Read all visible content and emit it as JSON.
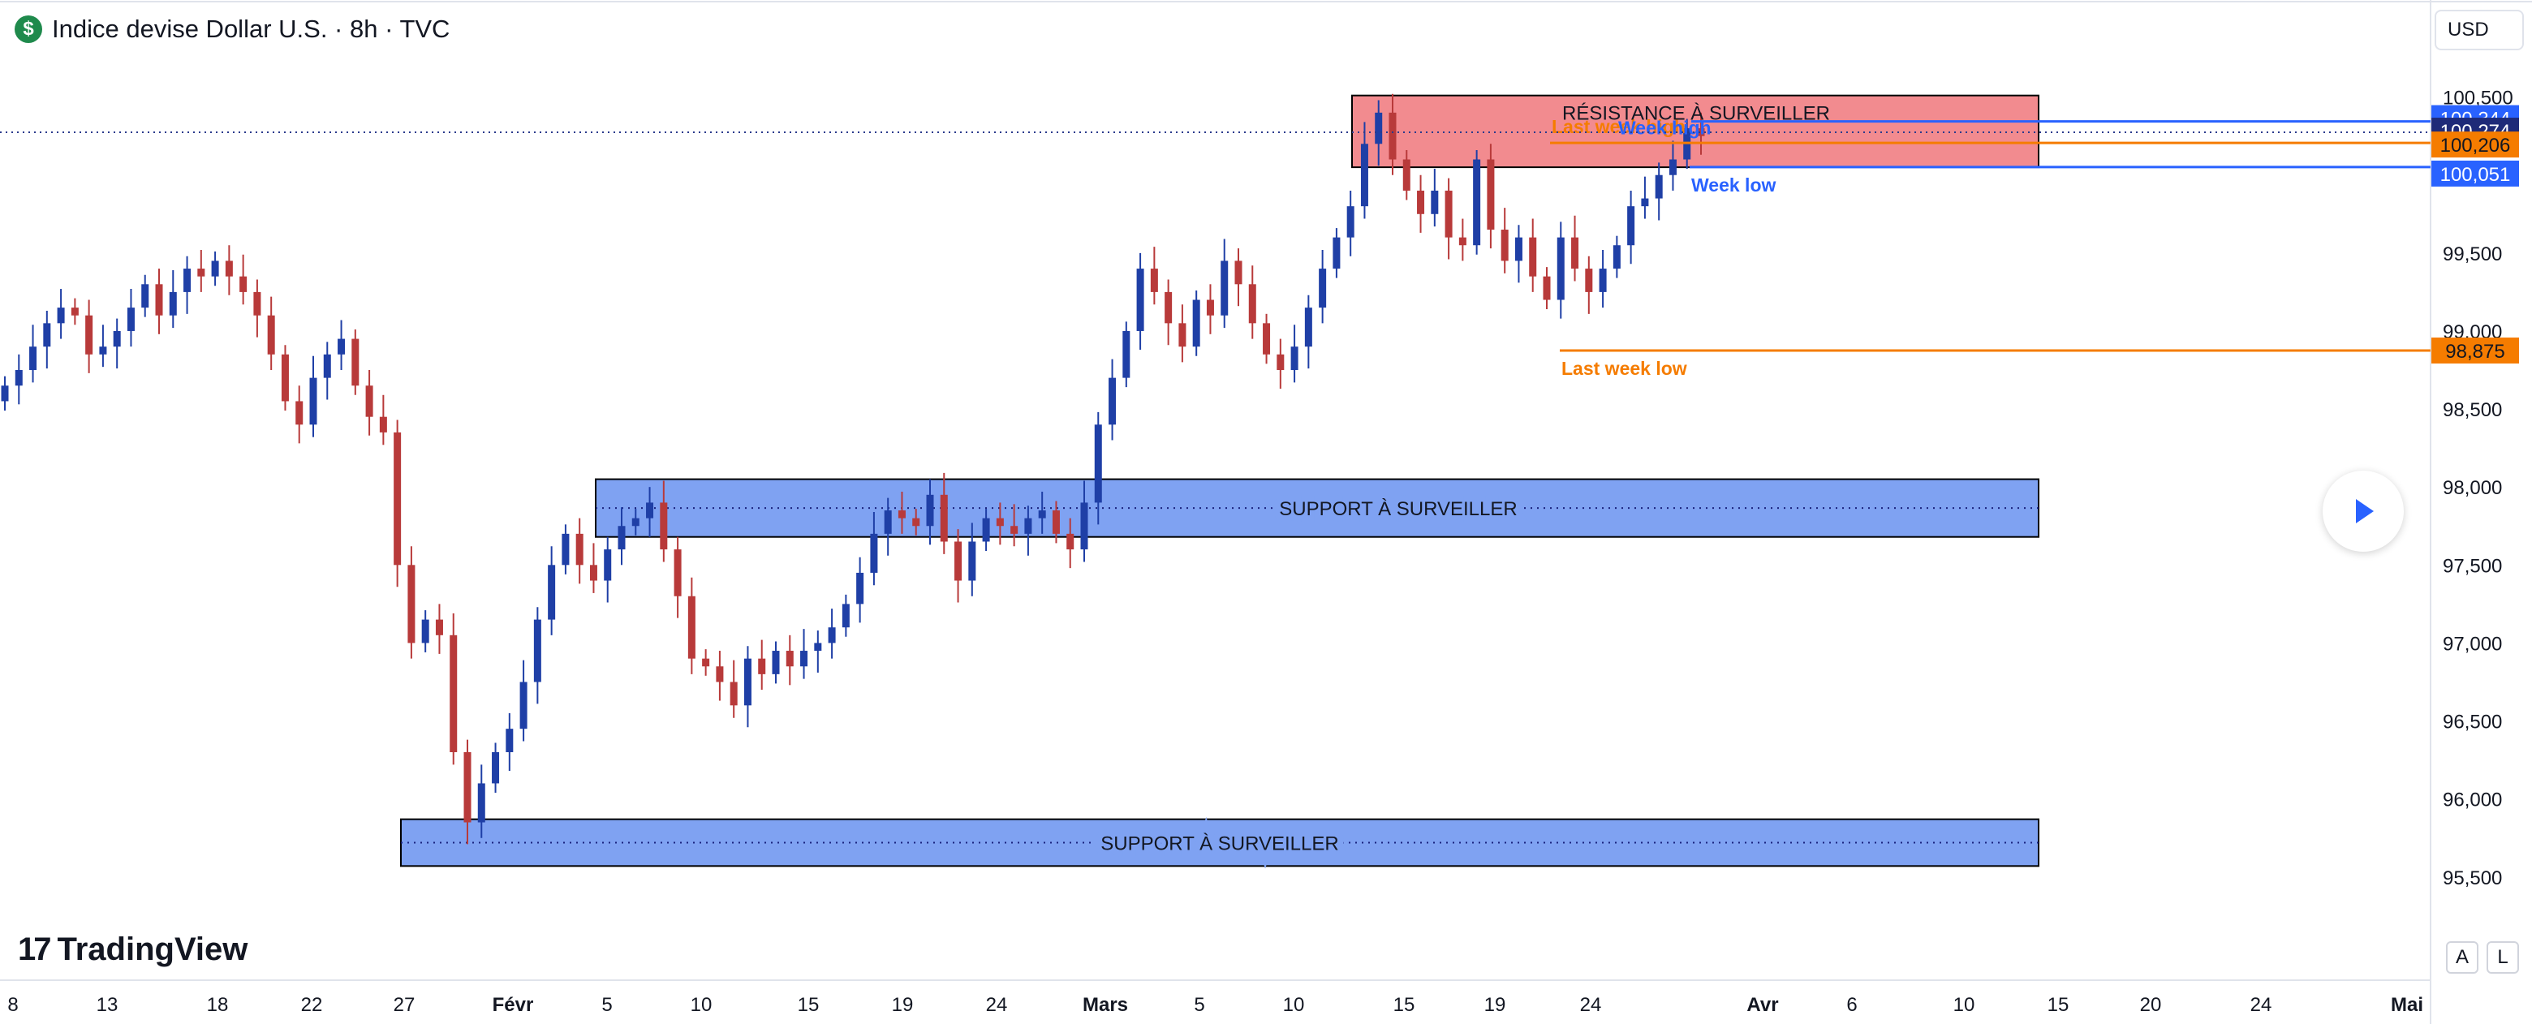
{
  "header": {
    "symbol_logo": "$",
    "title": "Indice devise Dollar U.S. · 8h · TVC",
    "currency": "USD"
  },
  "branding": {
    "name": "TradingView"
  },
  "buttons": {
    "auto": "A",
    "log": "L"
  },
  "icons": {
    "play": "play-icon",
    "logo": "tradingview-logo-icon"
  },
  "colors": {
    "up": "#1f3fa6",
    "down": "#b83a3a",
    "resistance": "#f28b8f",
    "support": "#7fa2f2",
    "last_week": "#f57c00",
    "week": "#2962ff"
  },
  "chart_data": {
    "type": "candlestick",
    "title": "Indice devise Dollar U.S. · 8h · TVC",
    "y_axis": {
      "range": [
        95.4,
        100.55
      ],
      "ticks": [
        "95,500",
        "96,000",
        "96,500",
        "97,000",
        "97,500",
        "98,000",
        "98,500",
        "99,000",
        "99,500",
        "100,500"
      ]
    },
    "x_axis": {
      "ticks": [
        "8",
        "13",
        "18",
        "22",
        "27",
        "Févr",
        "5",
        "10",
        "15",
        "19",
        "24",
        "Mars",
        "5",
        "10",
        "15",
        "19",
        "24",
        "Avr",
        "6",
        "10",
        "15",
        "20",
        "24",
        "Mai"
      ]
    },
    "closes": [
      98.65,
      98.75,
      98.9,
      99.05,
      99.15,
      99.1,
      98.85,
      98.9,
      99.0,
      99.15,
      99.3,
      99.1,
      99.25,
      99.4,
      99.35,
      99.45,
      99.35,
      99.25,
      99.1,
      98.85,
      98.55,
      98.4,
      98.7,
      98.85,
      98.95,
      98.65,
      98.45,
      98.35,
      97.5,
      97.0,
      97.15,
      97.05,
      96.3,
      95.85,
      96.1,
      96.3,
      96.45,
      96.75,
      97.15,
      97.5,
      97.7,
      97.5,
      97.4,
      97.6,
      97.75,
      97.8,
      97.9,
      97.6,
      97.3,
      96.9,
      96.85,
      96.75,
      96.6,
      96.9,
      96.8,
      96.95,
      96.85,
      96.95,
      97.0,
      97.1,
      97.25,
      97.45,
      97.7,
      97.85,
      97.8,
      97.75,
      97.95,
      97.65,
      97.4,
      97.65,
      97.8,
      97.75,
      97.7,
      97.8,
      97.85,
      97.7,
      97.6,
      97.9,
      98.4,
      98.7,
      99.0,
      99.4,
      99.25,
      99.05,
      98.9,
      99.2,
      99.1,
      99.45,
      99.3,
      99.05,
      98.85,
      98.75,
      98.9,
      99.15,
      99.4,
      99.6,
      99.8,
      100.2,
      100.4,
      100.1,
      99.9,
      99.75,
      99.9,
      99.6,
      99.55,
      100.1,
      99.65,
      99.45,
      99.6,
      99.35,
      99.2,
      99.6,
      99.4,
      99.25,
      99.4,
      99.55,
      99.8,
      99.85,
      100.0,
      100.1,
      100.3,
      100.25
    ],
    "resistance_zone": {
      "label": "RÉSISTANCE À SURVEILLER",
      "range": [
        100.05,
        100.51
      ]
    },
    "support_zones": [
      {
        "label": "SUPPORT À SURVEILLER",
        "range": [
          97.68,
          98.05
        ]
      },
      {
        "label": "SUPPORT À SURVEILLER",
        "range": [
          95.57,
          95.87
        ]
      }
    ],
    "levels": [
      {
        "name": "Last week high",
        "value": 100.206,
        "price_label": "100,206"
      },
      {
        "name": "Last week low",
        "value": 98.875,
        "price_label": "98,875"
      },
      {
        "name": "Week high",
        "value": 100.344,
        "price_label": "100,344"
      },
      {
        "name": "Week low",
        "value": 100.051,
        "price_label": "100,051"
      }
    ],
    "last_price": {
      "value": 100.274,
      "label": "100,274"
    }
  }
}
